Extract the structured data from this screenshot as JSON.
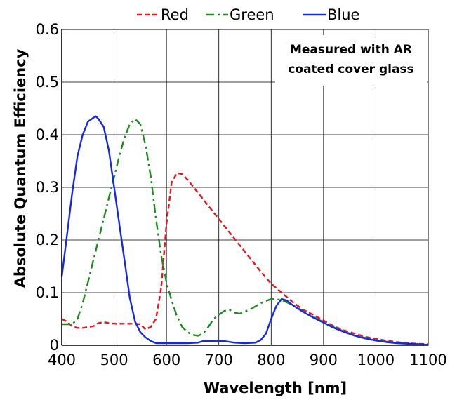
{
  "chart_data": {
    "type": "line",
    "xlabel": "Wavelength [nm]",
    "ylabel": "Absolute Quantum Efficiency",
    "xlim": [
      400,
      1100
    ],
    "ylim": [
      0,
      0.6
    ],
    "xticks": [
      400,
      500,
      600,
      700,
      800,
      900,
      1000,
      1100
    ],
    "yticks": [
      0,
      0.1,
      0.2,
      0.3,
      0.4,
      0.5,
      0.6
    ],
    "xtick_labels": [
      "400",
      "500",
      "600",
      "700",
      "800",
      "900",
      "1000",
      "1100"
    ],
    "ytick_labels": [
      "0",
      "0.1",
      "0.2",
      "0.3",
      "0.4",
      "0.5",
      "0.6"
    ],
    "grid": true,
    "legend_position": "top",
    "annotation": [
      "Measured with AR",
      "coated cover glass"
    ],
    "series": [
      {
        "name": "Red",
        "color": "#e8141e",
        "style": "dashed",
        "points": [
          [
            400,
            0.05
          ],
          [
            410,
            0.045
          ],
          [
            420,
            0.036
          ],
          [
            430,
            0.033
          ],
          [
            440,
            0.033
          ],
          [
            460,
            0.036
          ],
          [
            470,
            0.042
          ],
          [
            480,
            0.044
          ],
          [
            490,
            0.042
          ],
          [
            500,
            0.041
          ],
          [
            520,
            0.041
          ],
          [
            540,
            0.041
          ],
          [
            550,
            0.04
          ],
          [
            560,
            0.03
          ],
          [
            570,
            0.035
          ],
          [
            580,
            0.05
          ],
          [
            590,
            0.11
          ],
          [
            600,
            0.23
          ],
          [
            610,
            0.31
          ],
          [
            620,
            0.327
          ],
          [
            630,
            0.325
          ],
          [
            640,
            0.315
          ],
          [
            660,
            0.29
          ],
          [
            680,
            0.265
          ],
          [
            700,
            0.24
          ],
          [
            720,
            0.215
          ],
          [
            740,
            0.19
          ],
          [
            760,
            0.165
          ],
          [
            780,
            0.14
          ],
          [
            800,
            0.117
          ],
          [
            820,
            0.1
          ],
          [
            840,
            0.083
          ],
          [
            860,
            0.068
          ],
          [
            880,
            0.058
          ],
          [
            900,
            0.047
          ],
          [
            920,
            0.036
          ],
          [
            940,
            0.028
          ],
          [
            960,
            0.022
          ],
          [
            980,
            0.016
          ],
          [
            1000,
            0.012
          ],
          [
            1020,
            0.009
          ],
          [
            1040,
            0.006
          ],
          [
            1060,
            0.004
          ],
          [
            1080,
            0.003
          ],
          [
            1100,
            0.002
          ]
        ]
      },
      {
        "name": "Green",
        "color": "#1e8c1e",
        "style": "dash-dot",
        "points": [
          [
            400,
            0.04
          ],
          [
            410,
            0.04
          ],
          [
            420,
            0.04
          ],
          [
            430,
            0.05
          ],
          [
            440,
            0.08
          ],
          [
            450,
            0.12
          ],
          [
            460,
            0.16
          ],
          [
            470,
            0.2
          ],
          [
            480,
            0.24
          ],
          [
            490,
            0.28
          ],
          [
            500,
            0.32
          ],
          [
            510,
            0.36
          ],
          [
            520,
            0.395
          ],
          [
            530,
            0.42
          ],
          [
            540,
            0.43
          ],
          [
            550,
            0.42
          ],
          [
            560,
            0.38
          ],
          [
            570,
            0.32
          ],
          [
            580,
            0.24
          ],
          [
            590,
            0.17
          ],
          [
            600,
            0.12
          ],
          [
            610,
            0.085
          ],
          [
            620,
            0.055
          ],
          [
            630,
            0.035
          ],
          [
            640,
            0.025
          ],
          [
            650,
            0.02
          ],
          [
            660,
            0.018
          ],
          [
            670,
            0.022
          ],
          [
            680,
            0.035
          ],
          [
            690,
            0.05
          ],
          [
            700,
            0.058
          ],
          [
            710,
            0.065
          ],
          [
            720,
            0.068
          ],
          [
            730,
            0.062
          ],
          [
            740,
            0.06
          ],
          [
            760,
            0.068
          ],
          [
            780,
            0.08
          ],
          [
            800,
            0.088
          ],
          [
            815,
            0.087
          ],
          [
            820,
            0.086
          ],
          [
            840,
            0.077
          ],
          [
            860,
            0.065
          ],
          [
            880,
            0.054
          ],
          [
            900,
            0.044
          ],
          [
            920,
            0.034
          ],
          [
            940,
            0.026
          ],
          [
            960,
            0.019
          ],
          [
            980,
            0.014
          ],
          [
            1000,
            0.01
          ],
          [
            1020,
            0.007
          ],
          [
            1040,
            0.005
          ],
          [
            1060,
            0.003
          ],
          [
            1080,
            0.002
          ],
          [
            1100,
            0.001
          ]
        ]
      },
      {
        "name": "Blue",
        "color": "#1428e6",
        "style": "solid",
        "points": [
          [
            400,
            0.13
          ],
          [
            410,
            0.21
          ],
          [
            420,
            0.29
          ],
          [
            430,
            0.36
          ],
          [
            440,
            0.4
          ],
          [
            450,
            0.425
          ],
          [
            460,
            0.432
          ],
          [
            465,
            0.435
          ],
          [
            470,
            0.43
          ],
          [
            480,
            0.415
          ],
          [
            490,
            0.37
          ],
          [
            500,
            0.3
          ],
          [
            510,
            0.23
          ],
          [
            520,
            0.16
          ],
          [
            530,
            0.09
          ],
          [
            540,
            0.045
          ],
          [
            550,
            0.025
          ],
          [
            560,
            0.015
          ],
          [
            570,
            0.008
          ],
          [
            580,
            0.004
          ],
          [
            600,
            0.004
          ],
          [
            620,
            0.004
          ],
          [
            640,
            0.004
          ],
          [
            660,
            0.005
          ],
          [
            670,
            0.008
          ],
          [
            690,
            0.008
          ],
          [
            710,
            0.008
          ],
          [
            730,
            0.005
          ],
          [
            750,
            0.004
          ],
          [
            770,
            0.005
          ],
          [
            780,
            0.01
          ],
          [
            790,
            0.022
          ],
          [
            800,
            0.05
          ],
          [
            810,
            0.075
          ],
          [
            820,
            0.088
          ],
          [
            830,
            0.085
          ],
          [
            840,
            0.077
          ],
          [
            860,
            0.064
          ],
          [
            880,
            0.053
          ],
          [
            900,
            0.043
          ],
          [
            920,
            0.033
          ],
          [
            940,
            0.025
          ],
          [
            960,
            0.018
          ],
          [
            980,
            0.013
          ],
          [
            1000,
            0.009
          ],
          [
            1020,
            0.006
          ],
          [
            1040,
            0.004
          ],
          [
            1060,
            0.003
          ],
          [
            1080,
            0.002
          ],
          [
            1100,
            0.001
          ]
        ]
      }
    ]
  }
}
